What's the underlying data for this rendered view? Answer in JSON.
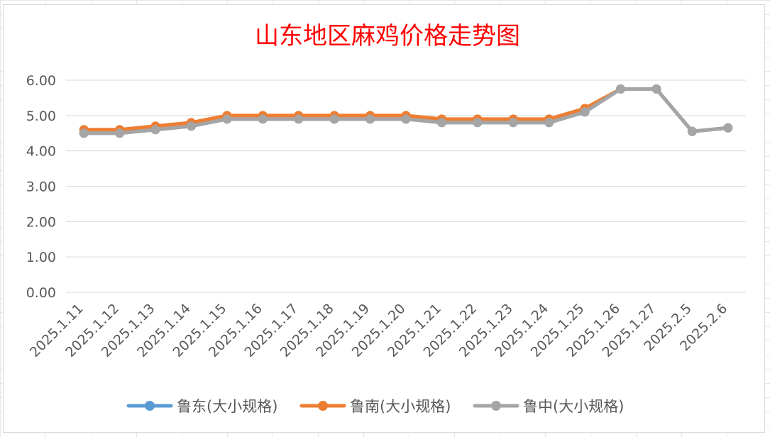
{
  "chart_data": {
    "type": "line",
    "title": "山东地区麻鸡价格走势图",
    "xlabel": "",
    "ylabel": "",
    "ylim": [
      0,
      6
    ],
    "yticks": [
      "0.00",
      "1.00",
      "2.00",
      "3.00",
      "4.00",
      "5.00",
      "6.00"
    ],
    "grid": true,
    "legend_position": "bottom",
    "categories": [
      "2025.1.11",
      "2025.1.12",
      "2025.1.13",
      "2025.1.14",
      "2025.1.15",
      "2025.1.16",
      "2025.1.17",
      "2025.1.18",
      "2025.1.19",
      "2025.1.20",
      "2025.1.21",
      "2025.1.22",
      "2025.1.23",
      "2025.1.24",
      "2025.1.25",
      "2025.1.26",
      "2025.1.27",
      "2025.2.5",
      "2025.2.6"
    ],
    "series": [
      {
        "name": "鲁东(大小规格)",
        "color": "#5b9bd5",
        "values": [
          4.5,
          4.5,
          4.6,
          4.7,
          4.9,
          4.9,
          4.9,
          4.9,
          4.9,
          4.9,
          4.8,
          4.8,
          4.8,
          4.8,
          5.1,
          5.75,
          5.75,
          4.55,
          4.65
        ]
      },
      {
        "name": "鲁南(大小规格)",
        "color": "#ed7d31",
        "values": [
          4.6,
          4.6,
          4.7,
          4.8,
          5.0,
          5.0,
          5.0,
          5.0,
          5.0,
          5.0,
          4.9,
          4.9,
          4.9,
          4.9,
          5.2,
          5.75,
          5.75,
          4.55,
          4.65
        ]
      },
      {
        "name": "鲁中(大小规格)",
        "color": "#a5a5a5",
        "values": [
          4.5,
          4.5,
          4.6,
          4.7,
          4.9,
          4.9,
          4.9,
          4.9,
          4.9,
          4.9,
          4.8,
          4.8,
          4.8,
          4.8,
          5.1,
          5.75,
          5.75,
          4.55,
          4.65
        ]
      }
    ]
  }
}
